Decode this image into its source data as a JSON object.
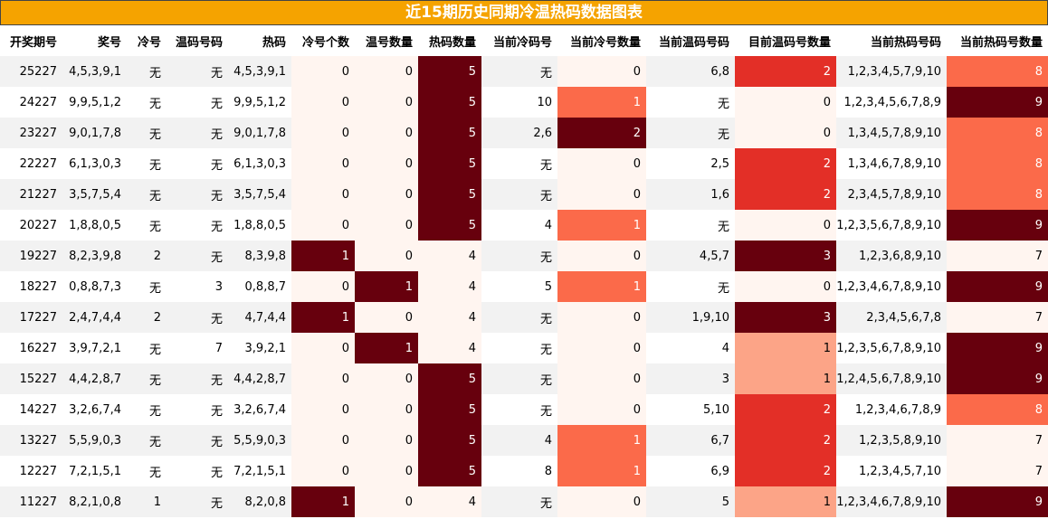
{
  "title": "近15期历史同期冷温热码数据图表",
  "chart_data": {
    "type": "table",
    "columns": [
      "开奖期号",
      "奖号",
      "冷号",
      "温码号码",
      "热码",
      "冷号个数",
      "温号数量",
      "热码数量",
      "当前冷码号",
      "当前冷号数量",
      "当前温码号码",
      "目前温码号数量",
      "当前热码号码",
      "当前热码号数量"
    ],
    "rows": [
      [
        "25227",
        "4,5,3,9,1",
        "无",
        "无",
        "4,5,3,9,1",
        0,
        0,
        5,
        "无",
        0,
        "6,8",
        2,
        "1,2,3,4,5,7,9,10",
        8
      ],
      [
        "24227",
        "9,9,5,1,2",
        "无",
        "无",
        "9,9,5,1,2",
        0,
        0,
        5,
        "10",
        1,
        "无",
        0,
        "1,2,3,4,5,6,7,8,9",
        9
      ],
      [
        "23227",
        "9,0,1,7,8",
        "无",
        "无",
        "9,0,1,7,8",
        0,
        0,
        5,
        "2,6",
        2,
        "无",
        0,
        "1,3,4,5,7,8,9,10",
        8
      ],
      [
        "22227",
        "6,1,3,0,3",
        "无",
        "无",
        "6,1,3,0,3",
        0,
        0,
        5,
        "无",
        0,
        "2,5",
        2,
        "1,3,4,6,7,8,9,10",
        8
      ],
      [
        "21227",
        "3,5,7,5,4",
        "无",
        "无",
        "3,5,7,5,4",
        0,
        0,
        5,
        "无",
        0,
        "1,6",
        2,
        "2,3,4,5,7,8,9,10",
        8
      ],
      [
        "20227",
        "1,8,8,0,5",
        "无",
        "无",
        "1,8,8,0,5",
        0,
        0,
        5,
        "4",
        1,
        "无",
        0,
        "1,2,3,5,6,7,8,9,10",
        9
      ],
      [
        "19227",
        "8,2,3,9,8",
        "2",
        "无",
        "8,3,9,8",
        1,
        0,
        4,
        "无",
        0,
        "4,5,7",
        3,
        "1,2,3,6,8,9,10",
        7
      ],
      [
        "18227",
        "0,8,8,7,3",
        "无",
        "3",
        "0,8,8,7",
        0,
        1,
        4,
        "5",
        1,
        "无",
        0,
        "1,2,3,4,6,7,8,9,10",
        9
      ],
      [
        "17227",
        "2,4,7,4,4",
        "2",
        "无",
        "4,7,4,4",
        1,
        0,
        4,
        "无",
        0,
        "1,9,10",
        3,
        "2,3,4,5,6,7,8",
        7
      ],
      [
        "16227",
        "3,9,7,2,1",
        "无",
        "7",
        "3,9,2,1",
        0,
        1,
        4,
        "无",
        0,
        "4",
        1,
        "1,2,3,5,6,7,8,9,10",
        9
      ],
      [
        "15227",
        "4,4,2,8,7",
        "无",
        "无",
        "4,4,2,8,7",
        0,
        0,
        5,
        "无",
        0,
        "3",
        1,
        "1,2,4,5,6,7,8,9,10",
        9
      ],
      [
        "14227",
        "3,2,6,7,4",
        "无",
        "无",
        "3,2,6,7,4",
        0,
        0,
        5,
        "无",
        0,
        "5,10",
        2,
        "1,2,3,4,6,7,8,9",
        8
      ],
      [
        "13227",
        "5,5,9,0,3",
        "无",
        "无",
        "5,5,9,0,3",
        0,
        0,
        5,
        "4",
        1,
        "6,7",
        2,
        "1,2,3,5,8,9,10",
        7
      ],
      [
        "12227",
        "7,2,1,5,1",
        "无",
        "无",
        "7,2,1,5,1",
        0,
        0,
        5,
        "8",
        1,
        "6,9",
        2,
        "1,2,3,4,5,7,10",
        7
      ],
      [
        "11227",
        "8,2,1,0,8",
        "1",
        "无",
        "8,2,0,8",
        1,
        0,
        4,
        "无",
        0,
        "5",
        1,
        "1,2,3,4,6,7,8,9,10",
        9
      ]
    ],
    "heatmap_columns": [
      5,
      6,
      7,
      9,
      11,
      13
    ],
    "colors": {
      "low": "#fff5f0",
      "mid_light": "#fca487",
      "mid": "#fb6a4a",
      "high": "#e32f27",
      "max": "#67000d",
      "title_bg": "#f5a300"
    }
  }
}
